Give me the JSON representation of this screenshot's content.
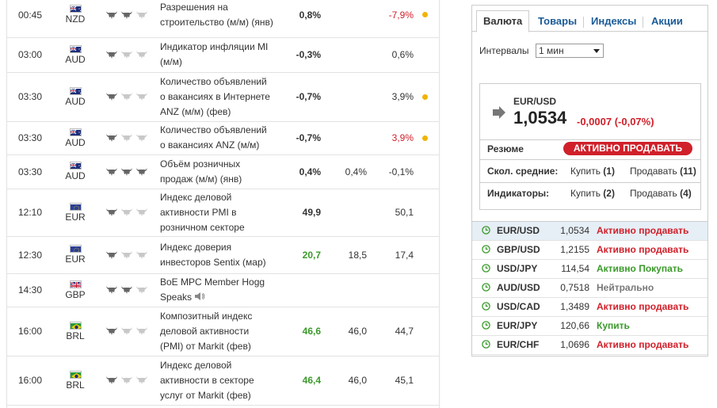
{
  "calendar": {
    "rows": [
      {
        "time": "00:45",
        "flag": "au",
        "code": "NZD",
        "bulls": 2,
        "event": [
          "Разрешения на",
          "строительство (м/м) (янв)"
        ],
        "actual": "0,8%",
        "actual_color": "#333333",
        "forecast": "",
        "previous": "-7,9%",
        "previous_color": "#d0202a",
        "dot": true
      },
      {
        "time": "03:00",
        "flag": "au",
        "code": "AUD",
        "bulls": 1,
        "event": [
          "Индикатор инфляции MI",
          "(м/м)"
        ],
        "actual": "-0,3%",
        "actual_color": "#333333",
        "forecast": "",
        "previous": "0,6%",
        "previous_color": "#333333",
        "dot": false
      },
      {
        "time": "03:30",
        "flag": "au",
        "code": "AUD",
        "bulls": 1,
        "event": [
          "Количество объявлений",
          "о вакансиях в Интернете",
          "ANZ (м/м) (фев)"
        ],
        "actual": "-0,7%",
        "actual_color": "#333333",
        "forecast": "",
        "previous": "3,9%",
        "previous_color": "#333333",
        "dot": true
      },
      {
        "time": "03:30",
        "flag": "au",
        "code": "AUD",
        "bulls": 1,
        "event": [
          "Количество объявлений",
          "о вакансиях ANZ (м/м)"
        ],
        "actual": "-0,7%",
        "actual_color": "#333333",
        "forecast": "",
        "previous": "3,9%",
        "previous_color": "#d0202a",
        "dot": true
      },
      {
        "time": "03:30",
        "flag": "au",
        "code": "AUD",
        "bulls": 3,
        "event": [
          "Объём розничных",
          "продаж (м/м) (янв)"
        ],
        "actual": "0,4%",
        "actual_color": "#333333",
        "forecast": "0,4%",
        "previous": "-0,1%",
        "previous_color": "#333333",
        "dot": false
      },
      {
        "time": "12:10",
        "flag": "eu",
        "code": "EUR",
        "bulls": 1,
        "event": [
          "Индекс деловой",
          "активности PMI в",
          "розничном секторе"
        ],
        "actual": "49,9",
        "actual_color": "#333333",
        "forecast": "",
        "previous": "50,1",
        "previous_color": "#333333",
        "dot": false
      },
      {
        "time": "12:30",
        "flag": "eu",
        "code": "EUR",
        "bulls": 1,
        "event": [
          "Индекс доверия",
          "инвесторов Sentix (мар)"
        ],
        "actual": "20,7",
        "actual_color": "#3a9a2a",
        "forecast": "18,5",
        "previous": "17,4",
        "previous_color": "#333333",
        "dot": false
      },
      {
        "time": "14:30",
        "flag": "gb",
        "code": "GBP",
        "bulls": 2,
        "event": [
          "BoE MPC Member Hogg",
          "Speaks"
        ],
        "speaker": true,
        "actual": "",
        "actual_color": "#333333",
        "forecast": "",
        "previous": "",
        "previous_color": "#333333",
        "dot": false
      },
      {
        "time": "16:00",
        "flag": "br",
        "code": "BRL",
        "bulls": 1,
        "event": [
          "Композитный индекс",
          "деловой активности",
          "(PMI) от Markit (фев)"
        ],
        "actual": "46,6",
        "actual_color": "#3a9a2a",
        "forecast": "46,0",
        "previous": "44,7",
        "previous_color": "#333333",
        "dot": false
      },
      {
        "time": "16:00",
        "flag": "br",
        "code": "BRL",
        "bulls": 1,
        "event": [
          "Индекс деловой",
          "активности в секторе",
          "услуг от Markit (фев)"
        ],
        "actual": "46,4",
        "actual_color": "#3a9a2a",
        "forecast": "46,0",
        "previous": "45,1",
        "previous_color": "#333333",
        "dot": false
      }
    ]
  },
  "widget": {
    "tabs": [
      "Валюта",
      "Товары",
      "Индексы",
      "Акции"
    ],
    "interval_label": "Интервалы",
    "interval_value": "1 мин",
    "summary": {
      "pair": "EUR/USD",
      "price": "1,0534",
      "change": "-0,0007 (-0,07%)",
      "resume_label": "Резюме",
      "resume_value": "АКТИВНО ПРОДАВАТЬ",
      "ma_label": "Скол. средние:",
      "ma_buy": "Купить",
      "ma_buy_count": "(1)",
      "ma_sell": "Продавать",
      "ma_sell_count": "(11)",
      "ind_label": "Индикаторы:",
      "ind_buy": "Купить",
      "ind_buy_count": "(2)",
      "ind_sell": "Продавать",
      "ind_sell_count": "(4)"
    },
    "pairs": [
      {
        "pair": "EUR/USD",
        "value": "1,0534",
        "signal": "Активно продавать",
        "color": "#d0202a"
      },
      {
        "pair": "GBP/USD",
        "value": "1,2155",
        "signal": "Активно продавать",
        "color": "#d0202a"
      },
      {
        "pair": "USD/JPY",
        "value": "114,54",
        "signal": "Активно Покупать",
        "color": "#3a9a2a"
      },
      {
        "pair": "AUD/USD",
        "value": "0,7518",
        "signal": "Нейтрально",
        "color": "#777777"
      },
      {
        "pair": "USD/CAD",
        "value": "1,3489",
        "signal": "Активно продавать",
        "color": "#d0202a"
      },
      {
        "pair": "EUR/JPY",
        "value": "120,66",
        "signal": "Купить",
        "color": "#3a9a2a"
      },
      {
        "pair": "EUR/CHF",
        "value": "1,0696",
        "signal": "Активно продавать",
        "color": "#d0202a"
      }
    ]
  }
}
